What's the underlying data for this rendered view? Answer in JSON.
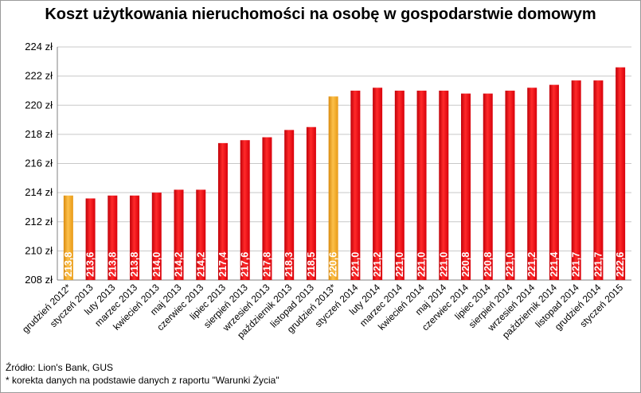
{
  "chart_data": {
    "type": "bar",
    "title": "Koszt użytkowania nieruchomości na osobę w gospodarstwie domowym",
    "categories": [
      "grudzień 2012*",
      "styczeń 2013",
      "luty 2013",
      "marzec 2013",
      "kwiecień 2013",
      "maj 2013",
      "czerwiec 2013",
      "lipiec 2013",
      "sierpień 2013",
      "wrzesień 2013",
      "październik 2013",
      "listopad 2013",
      "grudzień 2013*",
      "styczeń 2014",
      "luty 2014",
      "marzec 2014",
      "kwiecień 2014",
      "maj 2014",
      "czerwiec 2014",
      "lipiec 2014",
      "sierpień 2014",
      "wrzesień 2014",
      "październik 2014",
      "listopad 2014",
      "grudzień 2014",
      "styczeń 2015"
    ],
    "values": [
      213.8,
      213.6,
      213.8,
      213.8,
      214.0,
      214.2,
      214.2,
      217.4,
      217.6,
      217.8,
      218.3,
      218.5,
      220.6,
      221.0,
      221.2,
      221.0,
      221.0,
      221.0,
      220.8,
      220.8,
      221.0,
      221.2,
      221.4,
      221.7,
      221.7,
      222.6
    ],
    "data_labels": [
      "213,8",
      "213,6",
      "213,8",
      "213,8",
      "214,0",
      "214,2",
      "214,2",
      "217,4",
      "217,6",
      "217,8",
      "218,3",
      "218,5",
      "220,6",
      "221,0",
      "221,2",
      "221,0",
      "221,0",
      "221,0",
      "220,8",
      "220,8",
      "221,0",
      "221,2",
      "221,4",
      "221,7",
      "221,7",
      "222,6"
    ],
    "highlighted": [
      0,
      12
    ],
    "ylim": [
      208,
      224
    ],
    "yticks": [
      "208 zł",
      "210 zł",
      "212 zł",
      "214 zł",
      "216 zł",
      "218 zł",
      "220 zł",
      "222 zł",
      "224 zł"
    ],
    "xlabel": "",
    "ylabel": "",
    "grid": true,
    "colors": {
      "bar": "#e8000b",
      "highlight": "#f7a21a"
    }
  },
  "footer": {
    "source": "Źródło: Lion's Bank, GUS",
    "note": "* korekta danych na podstawie danych z raportu \"Warunki Życia\""
  }
}
